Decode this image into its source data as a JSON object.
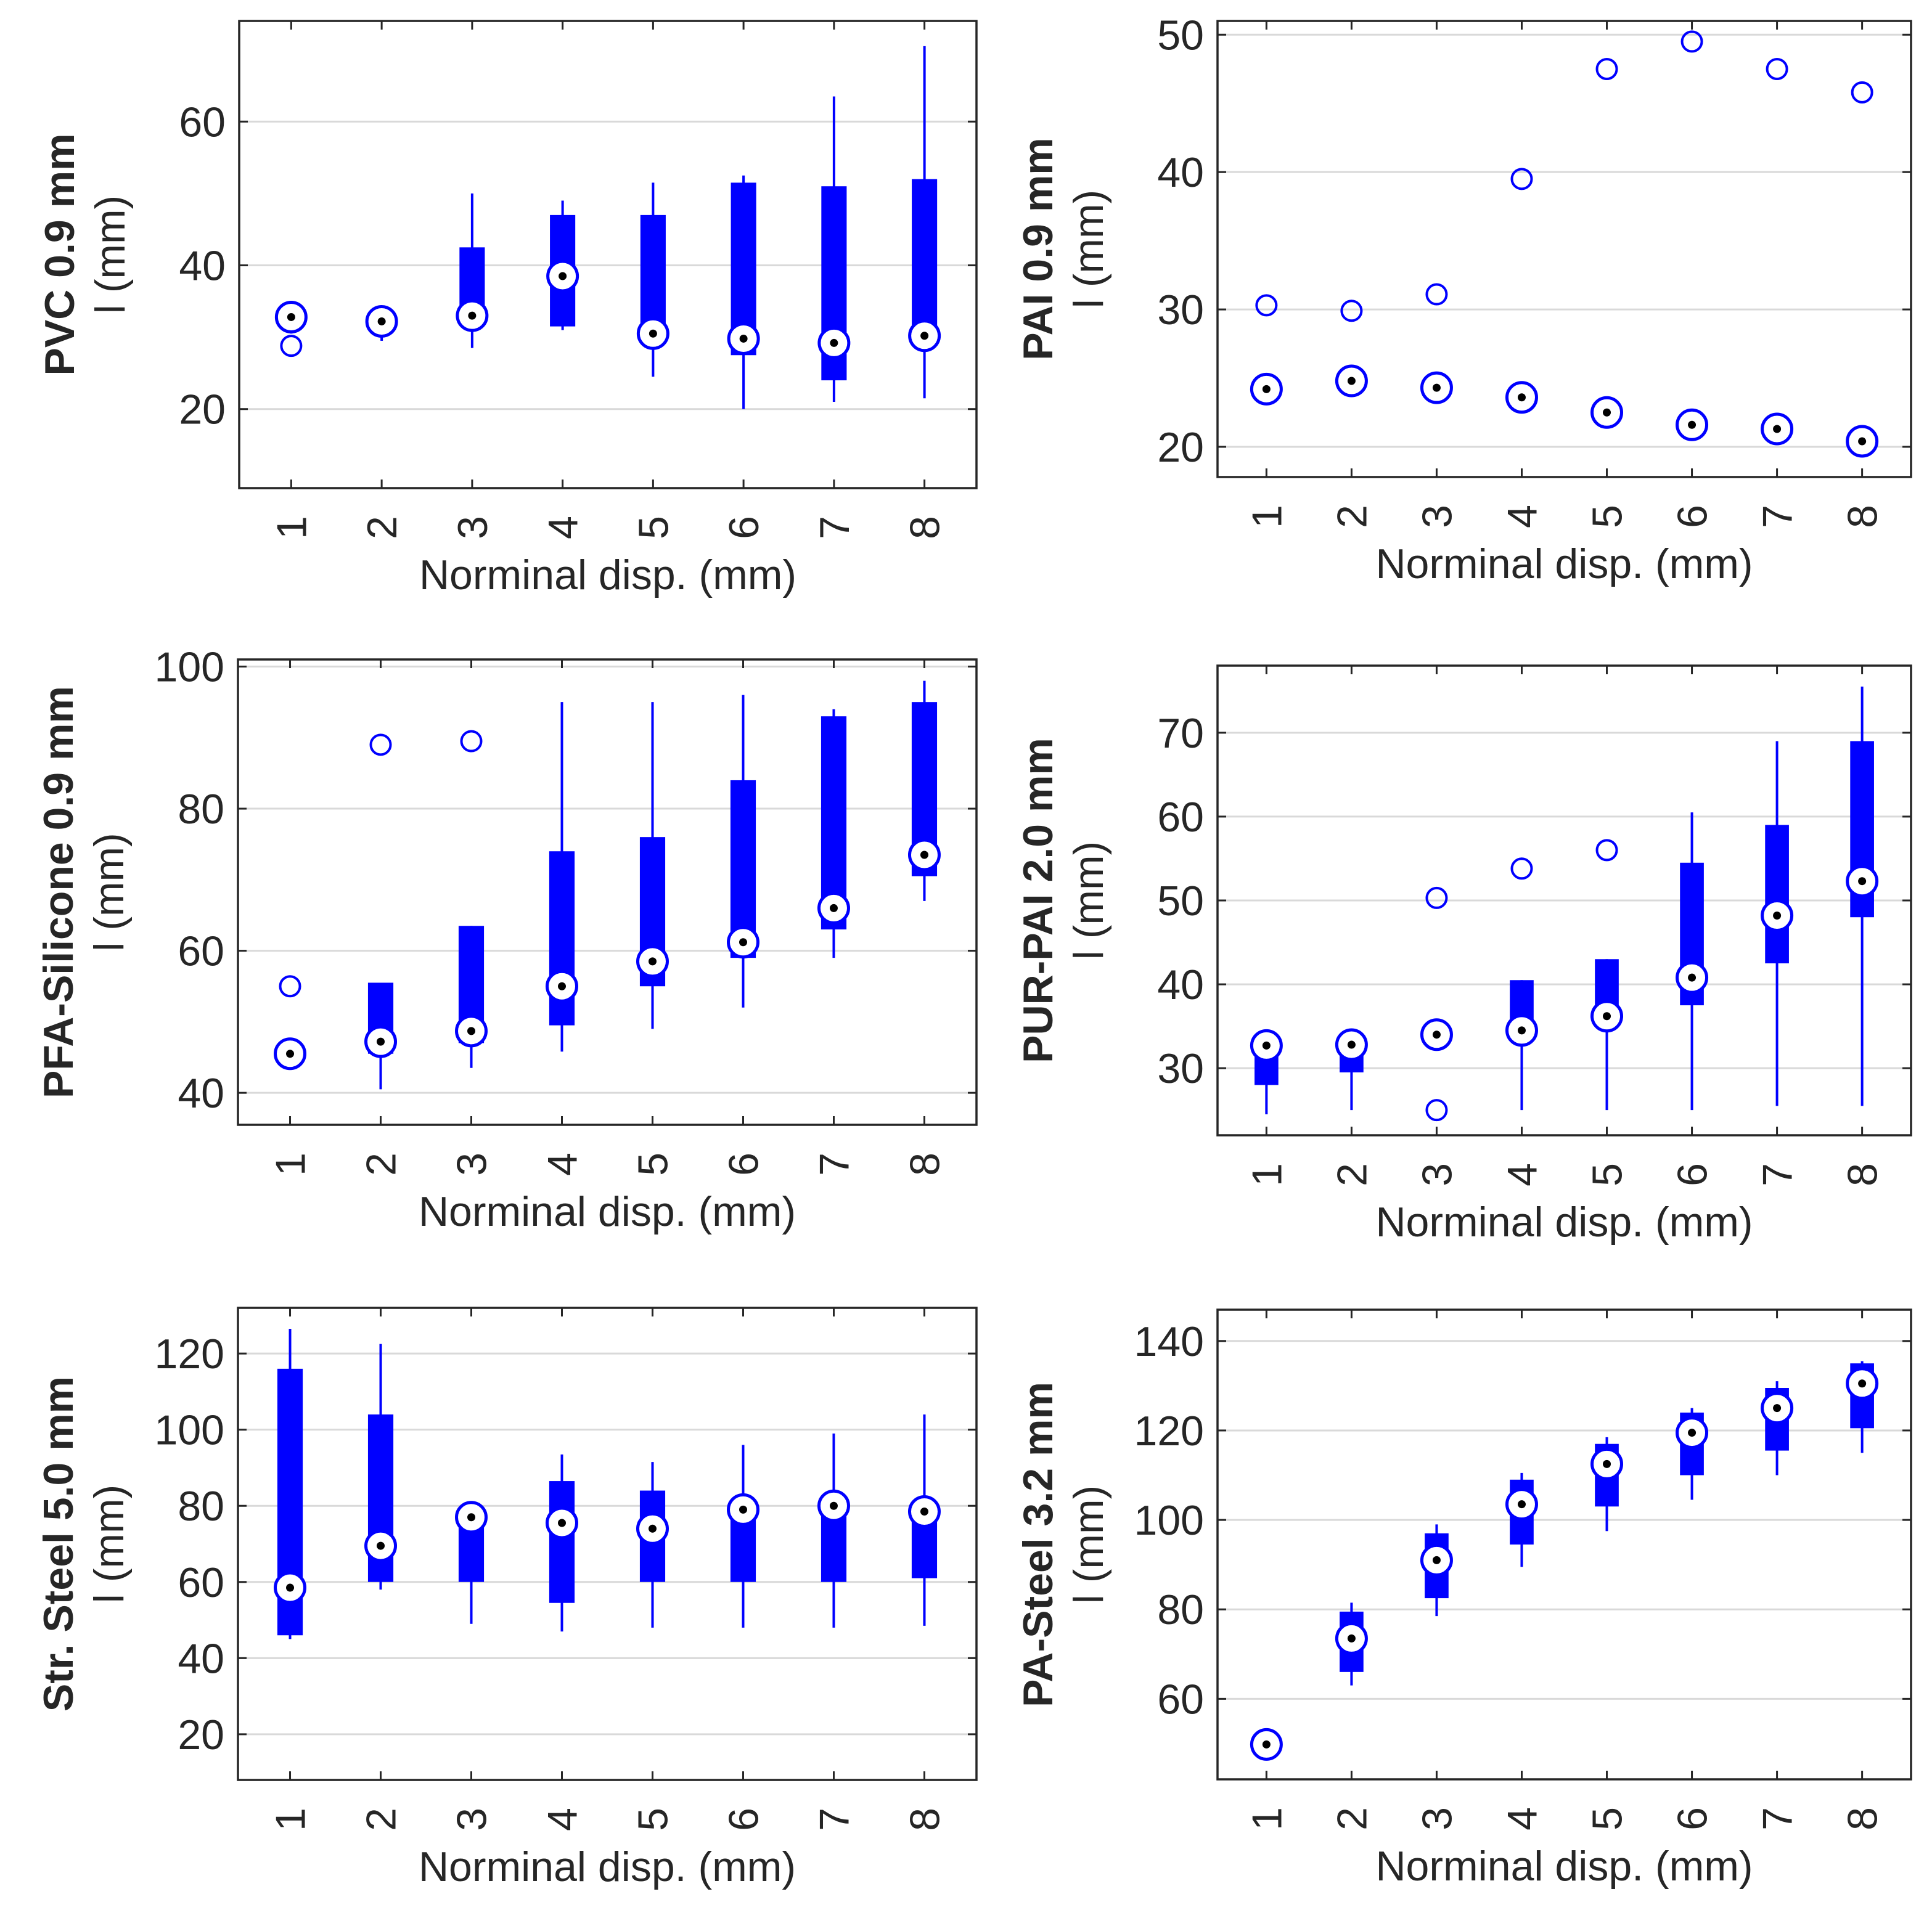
{
  "figure": {
    "marker_color": "#0000ff",
    "grid_color": "#d9d9d9",
    "frame_color": "#262626"
  },
  "chart_data": [
    {
      "type": "box",
      "title": "",
      "ylabel_bold": "PVC 0.9 mm",
      "ylabel": "l (mm)",
      "xlabel": "Norminal disp. (mm)",
      "categories": [
        "1",
        "2",
        "3",
        "4",
        "5",
        "6",
        "7",
        "8"
      ],
      "ylim": [
        9,
        74
      ],
      "yticks": [
        20,
        40,
        60
      ],
      "grid": true,
      "boxes": [
        {
          "wlow": 30.5,
          "q1": 31.5,
          "median": 32.8,
          "q3": 34.0,
          "whigh": 34.0
        },
        {
          "wlow": 29.5,
          "q1": 31.0,
          "median": 32.2,
          "q3": 33.0,
          "whigh": 33.0
        },
        {
          "wlow": 28.5,
          "q1": 32.0,
          "median": 33.0,
          "q3": 42.5,
          "whigh": 50.0
        },
        {
          "wlow": 31.0,
          "q1": 31.5,
          "median": 38.5,
          "q3": 47.0,
          "whigh": 49.0
        },
        {
          "wlow": 24.5,
          "q1": 29.5,
          "median": 30.5,
          "q3": 47.0,
          "whigh": 51.5
        },
        {
          "wlow": 20.0,
          "q1": 27.5,
          "median": 29.8,
          "q3": 51.5,
          "whigh": 52.5
        },
        {
          "wlow": 21.0,
          "q1": 24.0,
          "median": 29.2,
          "q3": 51.0,
          "whigh": 63.5
        },
        {
          "wlow": 21.5,
          "q1": 30.0,
          "median": 30.2,
          "q3": 52.0,
          "whigh": 70.5
        }
      ],
      "outliers": [
        {
          "x": 1,
          "y": 28.8
        }
      ]
    },
    {
      "type": "box",
      "title": "",
      "ylabel_bold": "PAI 0.9 mm",
      "ylabel": "l (mm)",
      "xlabel": "Norminal disp. (mm)",
      "categories": [
        "1",
        "2",
        "3",
        "4",
        "5",
        "6",
        "7",
        "8"
      ],
      "ylim": [
        17.8,
        51
      ],
      "yticks": [
        20,
        30,
        40,
        50
      ],
      "grid": true,
      "boxes": [
        {
          "wlow": 23.3,
          "q1": 23.6,
          "median": 24.2,
          "q3": 24.8,
          "whigh": 25.1
        },
        {
          "wlow": 24.2,
          "q1": 24.5,
          "median": 24.8,
          "q3": 25.1,
          "whigh": 25.4
        },
        {
          "wlow": 23.7,
          "q1": 24.0,
          "median": 24.3,
          "q3": 24.6,
          "whigh": 24.9
        },
        {
          "wlow": 23.0,
          "q1": 23.3,
          "median": 23.6,
          "q3": 23.9,
          "whigh": 24.2
        },
        {
          "wlow": 21.9,
          "q1": 22.2,
          "median": 22.5,
          "q3": 22.8,
          "whigh": 23.1
        },
        {
          "wlow": 21.0,
          "q1": 21.3,
          "median": 21.6,
          "q3": 21.9,
          "whigh": 22.2
        },
        {
          "wlow": 20.7,
          "q1": 21.0,
          "median": 21.3,
          "q3": 21.6,
          "whigh": 21.9
        },
        {
          "wlow": 19.8,
          "q1": 20.1,
          "median": 20.4,
          "q3": 20.7,
          "whigh": 21.0
        }
      ],
      "outliers": [
        {
          "x": 1,
          "y": 30.3
        },
        {
          "x": 2,
          "y": 29.9
        },
        {
          "x": 3,
          "y": 31.1
        },
        {
          "x": 4,
          "y": 39.5
        },
        {
          "x": 5,
          "y": 47.5
        },
        {
          "x": 6,
          "y": 49.5
        },
        {
          "x": 7,
          "y": 47.5
        },
        {
          "x": 8,
          "y": 45.8
        }
      ]
    },
    {
      "type": "box",
      "title": "",
      "ylabel_bold": "PFA-Silicone 0.9 mm",
      "ylabel": "l (mm)",
      "xlabel": "Norminal disp. (mm)",
      "categories": [
        "1",
        "2",
        "3",
        "4",
        "5",
        "6",
        "7",
        "8"
      ],
      "ylim": [
        35.5,
        101
      ],
      "yticks": [
        40,
        60,
        80,
        100
      ],
      "grid": true,
      "boxes": [
        {
          "wlow": 44.8,
          "q1": 45.0,
          "median": 45.5,
          "q3": 46.0,
          "whigh": 46.2
        },
        {
          "wlow": 40.5,
          "q1": 45.5,
          "median": 47.2,
          "q3": 55.5,
          "whigh": 55.5
        },
        {
          "wlow": 43.5,
          "q1": 47.0,
          "median": 48.7,
          "q3": 63.5,
          "whigh": 63.5
        },
        {
          "wlow": 45.8,
          "q1": 49.5,
          "median": 55.0,
          "q3": 74.0,
          "whigh": 95.0
        },
        {
          "wlow": 49.0,
          "q1": 55.0,
          "median": 58.5,
          "q3": 76.0,
          "whigh": 95.0
        },
        {
          "wlow": 52.0,
          "q1": 59.0,
          "median": 61.2,
          "q3": 84.0,
          "whigh": 96.0
        },
        {
          "wlow": 59.0,
          "q1": 63.0,
          "median": 66.0,
          "q3": 93.0,
          "whigh": 94.0
        },
        {
          "wlow": 67.0,
          "q1": 70.5,
          "median": 73.5,
          "q3": 95.0,
          "whigh": 98.0
        }
      ],
      "outliers": [
        {
          "x": 1,
          "y": 55.0
        },
        {
          "x": 2,
          "y": 89.0
        },
        {
          "x": 3,
          "y": 89.5
        }
      ]
    },
    {
      "type": "box",
      "title": "",
      "ylabel_bold": "PUR-PAI 2.0 mm",
      "ylabel": "l (mm)",
      "xlabel": "Norminal disp. (mm)",
      "categories": [
        "1",
        "2",
        "3",
        "4",
        "5",
        "6",
        "7",
        "8"
      ],
      "ylim": [
        22,
        78
      ],
      "yticks": [
        30,
        40,
        50,
        60,
        70
      ],
      "grid": true,
      "boxes": [
        {
          "wlow": 24.5,
          "q1": 28.0,
          "median": 32.7,
          "q3": 33.5,
          "whigh": 33.5
        },
        {
          "wlow": 25.0,
          "q1": 29.5,
          "median": 32.8,
          "q3": 33.5,
          "whigh": 33.5
        },
        {
          "wlow": 33.5,
          "q1": 33.7,
          "median": 34.0,
          "q3": 34.3,
          "whigh": 34.5
        },
        {
          "wlow": 25.0,
          "q1": 34.0,
          "median": 34.5,
          "q3": 40.5,
          "whigh": 40.5
        },
        {
          "wlow": 25.0,
          "q1": 35.0,
          "median": 36.2,
          "q3": 43.0,
          "whigh": 43.0
        },
        {
          "wlow": 25.0,
          "q1": 37.5,
          "median": 40.8,
          "q3": 54.5,
          "whigh": 60.5
        },
        {
          "wlow": 25.5,
          "q1": 42.5,
          "median": 48.2,
          "q3": 59.0,
          "whigh": 69.0
        },
        {
          "wlow": 25.5,
          "q1": 48.0,
          "median": 52.3,
          "q3": 69.0,
          "whigh": 75.5
        }
      ],
      "outliers": [
        {
          "x": 3,
          "y": 50.3
        },
        {
          "x": 3,
          "y": 25.0
        },
        {
          "x": 4,
          "y": 53.8
        },
        {
          "x": 5,
          "y": 56.0
        }
      ]
    },
    {
      "type": "box",
      "title": "",
      "ylabel_bold": "Str. Steel 5.0 mm",
      "ylabel": "l (mm)",
      "xlabel": "Norminal disp. (mm)",
      "categories": [
        "1",
        "2",
        "3",
        "4",
        "5",
        "6",
        "7",
        "8"
      ],
      "ylim": [
        8,
        132
      ],
      "yticks": [
        20,
        40,
        60,
        80,
        100,
        120
      ],
      "grid": true,
      "boxes": [
        {
          "wlow": 45.0,
          "q1": 46.0,
          "median": 58.5,
          "q3": 116.0,
          "whigh": 126.5
        },
        {
          "wlow": 58.0,
          "q1": 60.0,
          "median": 69.5,
          "q3": 104.0,
          "whigh": 122.5
        },
        {
          "wlow": 49.0,
          "q1": 60.0,
          "median": 77.0,
          "q3": 78.0,
          "whigh": 78.5
        },
        {
          "wlow": 47.0,
          "q1": 54.5,
          "median": 75.5,
          "q3": 86.5,
          "whigh": 93.5
        },
        {
          "wlow": 48.0,
          "q1": 60.0,
          "median": 74.0,
          "q3": 84.0,
          "whigh": 91.5
        },
        {
          "wlow": 48.0,
          "q1": 60.0,
          "median": 79.0,
          "q3": 80.0,
          "whigh": 96.0
        },
        {
          "wlow": 48.0,
          "q1": 60.0,
          "median": 80.0,
          "q3": 81.0,
          "whigh": 99.0
        },
        {
          "wlow": 48.5,
          "q1": 61.0,
          "median": 78.5,
          "q3": 79.5,
          "whigh": 104.0
        }
      ],
      "outliers": []
    },
    {
      "type": "box",
      "title": "",
      "ylabel_bold": "PA-Steel 3.2 mm",
      "ylabel": "l (mm)",
      "xlabel": "Norminal disp. (mm)",
      "categories": [
        "1",
        "2",
        "3",
        "4",
        "5",
        "6",
        "7",
        "8"
      ],
      "ylim": [
        42,
        147
      ],
      "yticks": [
        60,
        80,
        100,
        120,
        140
      ],
      "grid": true,
      "boxes": [
        {
          "wlow": 49.0,
          "q1": 49.5,
          "median": 49.8,
          "q3": 50.2,
          "whigh": 50.5
        },
        {
          "wlow": 63.0,
          "q1": 66.0,
          "median": 73.5,
          "q3": 79.5,
          "whigh": 81.5
        },
        {
          "wlow": 78.5,
          "q1": 82.5,
          "median": 91.0,
          "q3": 97.0,
          "whigh": 99.0
        },
        {
          "wlow": 89.5,
          "q1": 94.5,
          "median": 103.5,
          "q3": 109.0,
          "whigh": 110.5
        },
        {
          "wlow": 97.5,
          "q1": 103.0,
          "median": 112.5,
          "q3": 117.0,
          "whigh": 118.5
        },
        {
          "wlow": 104.5,
          "q1": 110.0,
          "median": 119.5,
          "q3": 124.0,
          "whigh": 125.0
        },
        {
          "wlow": 110.0,
          "q1": 115.5,
          "median": 125.0,
          "q3": 129.5,
          "whigh": 131.0
        },
        {
          "wlow": 115.0,
          "q1": 120.5,
          "median": 130.5,
          "q3": 135.0,
          "whigh": 135.5
        }
      ],
      "outliers": []
    }
  ]
}
